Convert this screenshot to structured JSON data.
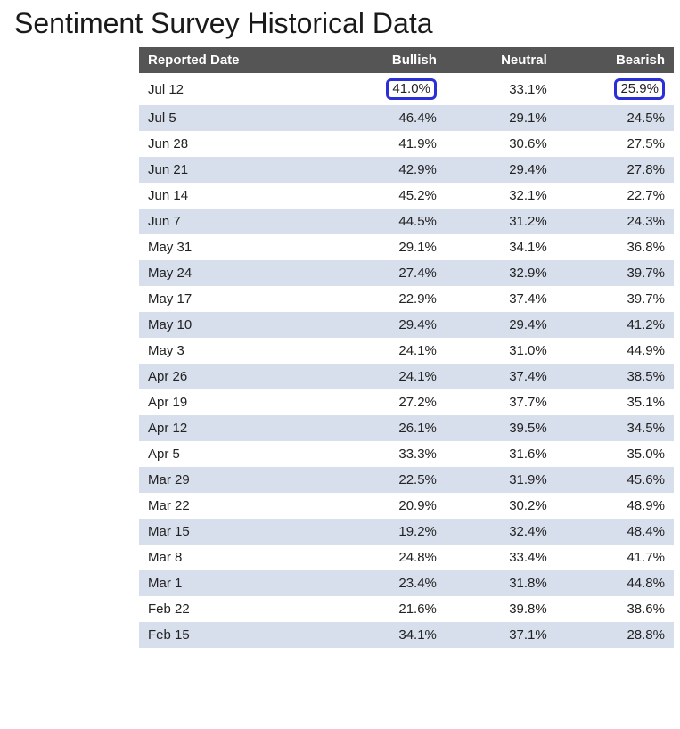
{
  "title": "Sentiment Survey Historical Data",
  "table": {
    "columns": [
      "Reported Date",
      "Bullish",
      "Neutral",
      "Bearish"
    ],
    "header_bg": "#555555",
    "header_fg": "#ffffff",
    "row_alt_bg": "#d8dfec",
    "row_bg": "#ffffff",
    "highlight_border": "#2a2fd6",
    "rows": [
      {
        "date": "Jul 12",
        "bullish": "41.0%",
        "neutral": "33.1%",
        "bearish": "25.9%",
        "hl_bullish": true,
        "hl_bearish": true
      },
      {
        "date": "Jul 5",
        "bullish": "46.4%",
        "neutral": "29.1%",
        "bearish": "24.5%"
      },
      {
        "date": "Jun 28",
        "bullish": "41.9%",
        "neutral": "30.6%",
        "bearish": "27.5%"
      },
      {
        "date": "Jun 21",
        "bullish": "42.9%",
        "neutral": "29.4%",
        "bearish": "27.8%"
      },
      {
        "date": "Jun 14",
        "bullish": "45.2%",
        "neutral": "32.1%",
        "bearish": "22.7%"
      },
      {
        "date": "Jun 7",
        "bullish": "44.5%",
        "neutral": "31.2%",
        "bearish": "24.3%"
      },
      {
        "date": "May 31",
        "bullish": "29.1%",
        "neutral": "34.1%",
        "bearish": "36.8%"
      },
      {
        "date": "May 24",
        "bullish": "27.4%",
        "neutral": "32.9%",
        "bearish": "39.7%"
      },
      {
        "date": "May 17",
        "bullish": "22.9%",
        "neutral": "37.4%",
        "bearish": "39.7%"
      },
      {
        "date": "May 10",
        "bullish": "29.4%",
        "neutral": "29.4%",
        "bearish": "41.2%"
      },
      {
        "date": "May 3",
        "bullish": "24.1%",
        "neutral": "31.0%",
        "bearish": "44.9%"
      },
      {
        "date": "Apr 26",
        "bullish": "24.1%",
        "neutral": "37.4%",
        "bearish": "38.5%"
      },
      {
        "date": "Apr 19",
        "bullish": "27.2%",
        "neutral": "37.7%",
        "bearish": "35.1%"
      },
      {
        "date": "Apr 12",
        "bullish": "26.1%",
        "neutral": "39.5%",
        "bearish": "34.5%"
      },
      {
        "date": "Apr 5",
        "bullish": "33.3%",
        "neutral": "31.6%",
        "bearish": "35.0%"
      },
      {
        "date": "Mar 29",
        "bullish": "22.5%",
        "neutral": "31.9%",
        "bearish": "45.6%"
      },
      {
        "date": "Mar 22",
        "bullish": "20.9%",
        "neutral": "30.2%",
        "bearish": "48.9%"
      },
      {
        "date": "Mar 15",
        "bullish": "19.2%",
        "neutral": "32.4%",
        "bearish": "48.4%"
      },
      {
        "date": "Mar 8",
        "bullish": "24.8%",
        "neutral": "33.4%",
        "bearish": "41.7%"
      },
      {
        "date": "Mar 1",
        "bullish": "23.4%",
        "neutral": "31.8%",
        "bearish": "44.8%"
      },
      {
        "date": "Feb 22",
        "bullish": "21.6%",
        "neutral": "39.8%",
        "bearish": "38.6%"
      },
      {
        "date": "Feb 15",
        "bullish": "34.1%",
        "neutral": "37.1%",
        "bearish": "28.8%"
      }
    ]
  }
}
